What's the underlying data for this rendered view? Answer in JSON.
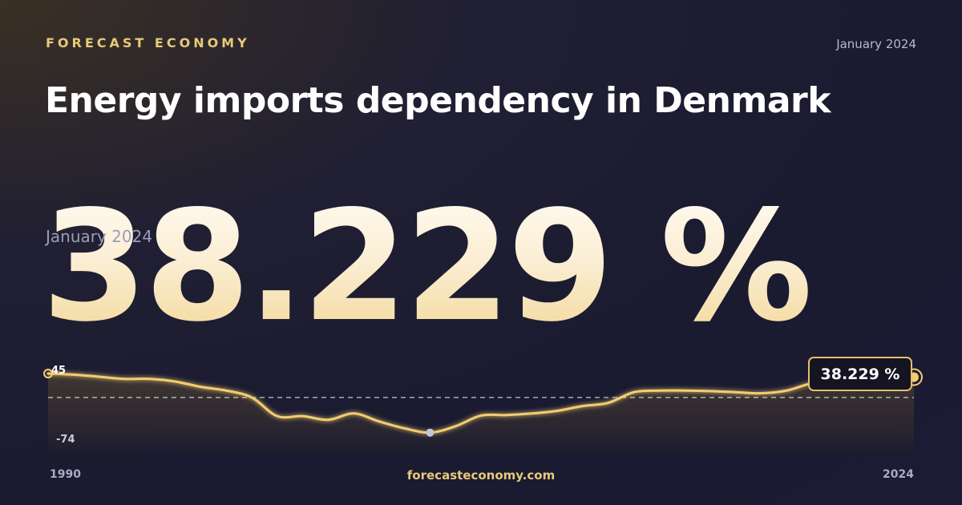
{
  "header": {
    "brand": "FORECAST ECONOMY",
    "date": "January 2024",
    "title": "Energy imports dependency in Denmark"
  },
  "headline": {
    "value": "38.229 %",
    "date": "January 2024"
  },
  "footer": {
    "site": "forecasteconomy.com"
  },
  "colors": {
    "accent": "#e8c97a",
    "line": "#f2cd70",
    "background": "#1b1c34"
  },
  "chart_data": {
    "type": "area",
    "xlabel": "",
    "ylabel": "",
    "x_start_label": "1990",
    "x_end_label": "2024",
    "y_max_label": "45",
    "y_min_label": "-74",
    "ylim": [
      -74,
      45
    ],
    "reference_line": 0,
    "callout": "38.229 %",
    "x": [
      1990,
      1991,
      1992,
      1993,
      1994,
      1995,
      1996,
      1997,
      1998,
      1999,
      2000,
      2001,
      2002,
      2003,
      2004,
      2005,
      2006,
      2007,
      2008,
      2009,
      2010,
      2011,
      2012,
      2013,
      2014,
      2015,
      2016,
      2017,
      2018,
      2019,
      2020,
      2021,
      2022,
      2023,
      2024
    ],
    "values": [
      45,
      43,
      39,
      35,
      35,
      30,
      20,
      13,
      0,
      -35,
      -35,
      -42,
      -30,
      -45,
      -58,
      -66,
      -54,
      -34,
      -33,
      -30,
      -25,
      -16,
      -10,
      10,
      13,
      13,
      12,
      10,
      8,
      13,
      27,
      33,
      36,
      38,
      38.229
    ],
    "marker_min_index": 15
  }
}
